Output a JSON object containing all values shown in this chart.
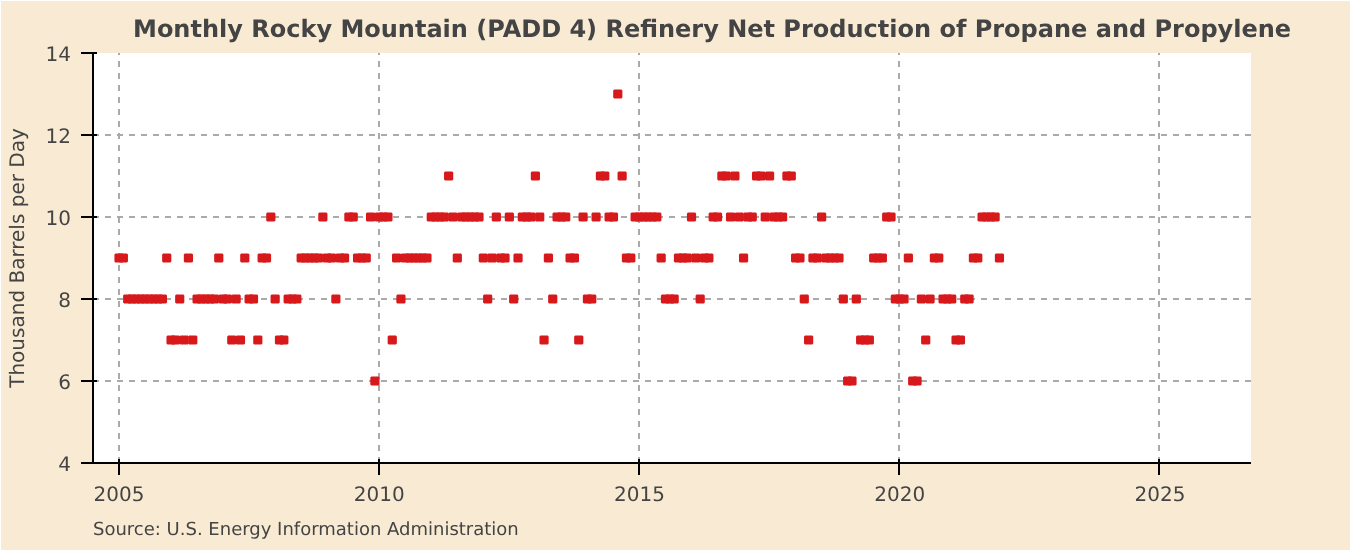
{
  "chart_data": {
    "type": "scatter",
    "title": "Monthly Rocky Mountain (PADD 4) Refinery Net Production of Propane and Propylene",
    "ylabel": "Thousand Barrels per Day",
    "annotations": [
      "Source: U.S. Energy Information Administration"
    ],
    "marker": "square",
    "grid": true,
    "x": [
      "2005-01",
      "2005-02",
      "2005-03",
      "2005-04",
      "2005-05",
      "2005-06",
      "2005-07",
      "2005-08",
      "2005-09",
      "2005-10",
      "2005-11",
      "2005-12",
      "2006-01",
      "2006-02",
      "2006-03",
      "2006-04",
      "2006-05",
      "2006-06",
      "2006-07",
      "2006-08",
      "2006-09",
      "2006-10",
      "2006-11",
      "2006-12",
      "2007-01",
      "2007-02",
      "2007-03",
      "2007-04",
      "2007-05",
      "2007-06",
      "2007-07",
      "2007-08",
      "2007-09",
      "2007-10",
      "2007-11",
      "2007-12",
      "2008-01",
      "2008-02",
      "2008-03",
      "2008-04",
      "2008-05",
      "2008-06",
      "2008-07",
      "2008-08",
      "2008-09",
      "2008-10",
      "2008-11",
      "2008-12",
      "2009-01",
      "2009-02",
      "2009-03",
      "2009-04",
      "2009-05",
      "2009-06",
      "2009-07",
      "2009-08",
      "2009-09",
      "2009-10",
      "2009-11",
      "2009-12",
      "2010-01",
      "2010-02",
      "2010-03",
      "2010-04",
      "2010-05",
      "2010-06",
      "2010-07",
      "2010-08",
      "2010-09",
      "2010-10",
      "2010-11",
      "2010-12",
      "2011-01",
      "2011-02",
      "2011-03",
      "2011-04",
      "2011-05",
      "2011-06",
      "2011-07",
      "2011-08",
      "2011-09",
      "2011-10",
      "2011-11",
      "2011-12",
      "2012-01",
      "2012-02",
      "2012-03",
      "2012-04",
      "2012-05",
      "2012-06",
      "2012-07",
      "2012-08",
      "2012-09",
      "2012-10",
      "2012-11",
      "2012-12",
      "2013-01",
      "2013-02",
      "2013-03",
      "2013-04",
      "2013-05",
      "2013-06",
      "2013-07",
      "2013-08",
      "2013-09",
      "2013-10",
      "2013-11",
      "2013-12",
      "2014-01",
      "2014-02",
      "2014-03",
      "2014-04",
      "2014-05",
      "2014-06",
      "2014-07",
      "2014-08",
      "2014-09",
      "2014-10",
      "2014-11",
      "2014-12",
      "2015-01",
      "2015-02",
      "2015-03",
      "2015-04",
      "2015-05",
      "2015-06",
      "2015-07",
      "2015-08",
      "2015-09",
      "2015-10",
      "2015-11",
      "2015-12",
      "2016-01",
      "2016-02",
      "2016-03",
      "2016-04",
      "2016-05",
      "2016-06",
      "2016-07",
      "2016-08",
      "2016-09",
      "2016-10",
      "2016-11",
      "2016-12",
      "2017-01",
      "2017-02",
      "2017-03",
      "2017-04",
      "2017-05",
      "2017-06",
      "2017-07",
      "2017-08",
      "2017-09",
      "2017-10",
      "2017-11",
      "2017-12",
      "2018-01",
      "2018-02",
      "2018-03",
      "2018-04",
      "2018-05",
      "2018-06",
      "2018-07",
      "2018-08",
      "2018-09",
      "2018-10",
      "2018-11",
      "2018-12",
      "2019-01",
      "2019-02",
      "2019-03",
      "2019-04",
      "2019-05",
      "2019-06",
      "2019-07",
      "2019-08",
      "2019-09",
      "2019-10",
      "2019-11",
      "2019-12",
      "2020-01",
      "2020-02",
      "2020-03",
      "2020-04",
      "2020-05",
      "2020-06",
      "2020-07",
      "2020-08",
      "2020-09",
      "2020-10",
      "2020-11",
      "2020-12",
      "2021-01",
      "2021-02",
      "2021-03",
      "2021-04",
      "2021-05",
      "2021-06",
      "2021-07",
      "2021-08",
      "2021-09",
      "2021-10",
      "2021-11",
      "2021-12"
    ],
    "series": [
      {
        "color": "#d7191c",
        "values": [
          9,
          9,
          8,
          8,
          8,
          8,
          8,
          8,
          8,
          8,
          8,
          9,
          7,
          7,
          8,
          7,
          9,
          7,
          8,
          8,
          8,
          8,
          8,
          9,
          8,
          8,
          7,
          8,
          7,
          9,
          8,
          8,
          7,
          9,
          9,
          10,
          8,
          7,
          7,
          8,
          8,
          8,
          9,
          9,
          9,
          9,
          9,
          10,
          9,
          9,
          8,
          9,
          9,
          10,
          10,
          9,
          9,
          9,
          10,
          6,
          10,
          10,
          10,
          7,
          9,
          8,
          9,
          9,
          9,
          9,
          9,
          9,
          10,
          10,
          10,
          10,
          11,
          10,
          9,
          10,
          10,
          10,
          10,
          10,
          9,
          8,
          9,
          10,
          9,
          9,
          10,
          8,
          9,
          10,
          10,
          10,
          11,
          10,
          7,
          9,
          8,
          10,
          10,
          10,
          9,
          9,
          7,
          10,
          8,
          8,
          10,
          11,
          11,
          10,
          10,
          13,
          11,
          9,
          9,
          10,
          10,
          10,
          10,
          10,
          10,
          9,
          8,
          8,
          8,
          9,
          9,
          9,
          10,
          9,
          8,
          9,
          9,
          10,
          10,
          11,
          11,
          10,
          11,
          10,
          9,
          10,
          10,
          11,
          11,
          10,
          11,
          10,
          10,
          10,
          11,
          11,
          9,
          9,
          8,
          7,
          9,
          9,
          10,
          9,
          9,
          9,
          9,
          8,
          6,
          6,
          8,
          7,
          7,
          7,
          9,
          9,
          9,
          10,
          10,
          8,
          8,
          8,
          9,
          6,
          6,
          8,
          7,
          8,
          9,
          9,
          8,
          8,
          8,
          7,
          7,
          8,
          8,
          9,
          9,
          10,
          10,
          10,
          10,
          9
        ]
      }
    ],
    "xlim": [
      "2004-07",
      "2026-10"
    ],
    "xticks": [
      {
        "value": "2005-01",
        "label": "2005"
      },
      {
        "value": "2010-01",
        "label": "2010"
      },
      {
        "value": "2015-01",
        "label": "2015"
      },
      {
        "value": "2020-01",
        "label": "2020"
      },
      {
        "value": "2025-01",
        "label": "2025"
      }
    ],
    "ylim": [
      4,
      14
    ],
    "yticks": [
      4,
      6,
      8,
      10,
      12,
      14
    ]
  }
}
